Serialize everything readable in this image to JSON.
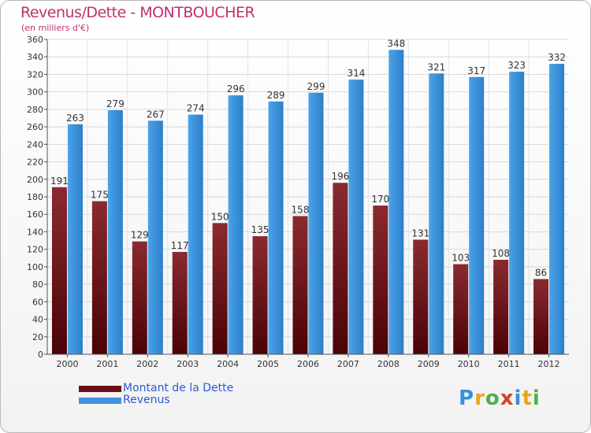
{
  "chart_data": {
    "type": "bar",
    "title": "Revenus/Dette - MONTBOUCHER",
    "subtitle": "(en milliers d'€)",
    "categories": [
      "2000",
      "2001",
      "2002",
      "2003",
      "2004",
      "2005",
      "2006",
      "2007",
      "2008",
      "2009",
      "2010",
      "2011",
      "2012"
    ],
    "series": [
      {
        "name": "Montant de la Dette",
        "color": "#6b0d12",
        "values": [
          191,
          175,
          129,
          117,
          150,
          135,
          158,
          196,
          170,
          131,
          103,
          108,
          86
        ]
      },
      {
        "name": "Revenus",
        "color": "#3f93dd",
        "values": [
          263,
          279,
          267,
          274,
          296,
          289,
          299,
          314,
          348,
          321,
          317,
          323,
          332
        ]
      }
    ],
    "ylim": [
      0,
      360
    ],
    "yticks": [
      0,
      20,
      40,
      60,
      80,
      100,
      120,
      140,
      160,
      180,
      200,
      220,
      240,
      260,
      280,
      300,
      320,
      340,
      360
    ],
    "grid": true,
    "legend": "bottom-left"
  },
  "logo": {
    "text": "Proxiti"
  }
}
